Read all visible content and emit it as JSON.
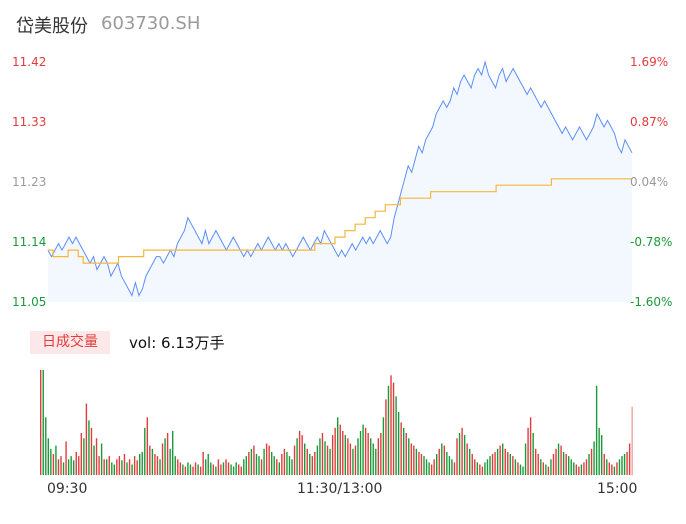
{
  "header": {
    "name": "岱美股份",
    "code": "603730.SH"
  },
  "colors": {
    "up": "#e23b3b",
    "down": "#1a9b3a",
    "flat": "#9a9a9a",
    "price": "#5b8ff9",
    "avg": "#f6b73c",
    "fill": "#f3f7fe"
  },
  "volume": {
    "tag": "日成交量",
    "text": "vol: 6.13万手"
  },
  "time_labels": [
    "09:30",
    "11:30/13:00",
    "15:00"
  ],
  "chart_data": [
    {
      "type": "line",
      "name": "intraday-price",
      "x_range": [
        "09:30",
        "15:00"
      ],
      "ylim": [
        11.05,
        11.42
      ],
      "y_ticks": [
        "11.42",
        "11.33",
        "11.23",
        "11.14",
        "11.05"
      ],
      "pct_ticks": [
        "1.69%",
        "0.87%",
        "0.04%",
        "-0.78%",
        "-1.60%"
      ],
      "prev_close": 11.23,
      "series": [
        {
          "values": [
            11.13,
            11.12,
            11.13,
            11.14,
            11.13,
            11.14,
            11.15,
            11.14,
            11.15,
            11.14,
            11.13,
            11.12,
            11.11,
            11.12,
            11.1,
            11.11,
            11.12,
            11.11,
            11.09,
            11.1,
            11.11,
            11.09,
            11.08,
            11.07,
            11.06,
            11.08,
            11.06,
            11.07,
            11.09,
            11.1,
            11.11,
            11.12,
            11.12,
            11.11,
            11.12,
            11.13,
            11.12,
            11.14,
            11.15,
            11.16,
            11.18,
            11.17,
            11.16,
            11.15,
            11.14,
            11.16,
            11.14,
            11.15,
            11.16,
            11.15,
            11.14,
            11.13,
            11.14,
            11.15,
            11.14,
            11.13,
            11.12,
            11.13,
            11.12,
            11.13,
            11.14,
            11.13,
            11.14,
            11.15,
            11.14,
            11.13,
            11.14,
            11.13,
            11.14,
            11.13,
            11.12,
            11.13,
            11.14,
            11.15,
            11.14,
            11.13,
            11.14,
            11.15,
            11.14,
            11.16,
            11.15,
            11.14,
            11.13,
            11.12,
            11.13,
            11.12,
            11.13,
            11.14,
            11.13,
            11.14,
            11.15,
            11.14,
            11.15,
            11.14,
            11.15,
            11.16,
            11.15,
            11.14,
            11.15,
            11.18,
            11.2,
            11.22,
            11.24,
            11.26,
            11.25,
            11.27,
            11.29,
            11.28,
            11.3,
            11.31,
            11.32,
            11.34,
            11.35,
            11.36,
            11.35,
            11.36,
            11.38,
            11.37,
            11.39,
            11.4,
            11.39,
            11.38,
            11.4,
            11.41,
            11.4,
            11.42,
            11.4,
            11.39,
            11.38,
            11.4,
            11.41,
            11.39,
            11.4,
            11.41,
            11.4,
            11.39,
            11.38,
            11.37,
            11.38,
            11.37,
            11.36,
            11.35,
            11.36,
            11.35,
            11.34,
            11.33,
            11.32,
            11.31,
            11.32,
            11.31,
            11.3,
            11.31,
            11.32,
            11.31,
            11.3,
            11.31,
            11.32,
            11.34,
            11.33,
            11.32,
            11.33,
            11.32,
            11.31,
            11.29,
            11.28,
            11.3,
            11.29,
            11.28
          ],
          "color_key": "price"
        },
        {
          "values": [
            11.13,
            11.12,
            11.12,
            11.12,
            11.13,
            11.13,
            11.12,
            11.11,
            11.11,
            11.11,
            11.11,
            11.11,
            11.11,
            11.11,
            11.12,
            11.12,
            11.12,
            11.12,
            11.12,
            11.13,
            11.13,
            11.13,
            11.13,
            11.13,
            11.13,
            11.13,
            11.13,
            11.13,
            11.13,
            11.13,
            11.13,
            11.13,
            11.13,
            11.13,
            11.13,
            11.13,
            11.13,
            11.13,
            11.13,
            11.13,
            11.13,
            11.13,
            11.13,
            11.13,
            11.13,
            11.13,
            11.13,
            11.13,
            11.13,
            11.13,
            11.13,
            11.13,
            11.13,
            11.14,
            11.14,
            11.14,
            11.14,
            11.15,
            11.15,
            11.16,
            11.16,
            11.17,
            11.17,
            11.18,
            11.18,
            11.19,
            11.19,
            11.2,
            11.2,
            11.2,
            11.21,
            11.21,
            11.21,
            11.21,
            11.21,
            11.21,
            11.22,
            11.22,
            11.22,
            11.22,
            11.22,
            11.22,
            11.22,
            11.22,
            11.22,
            11.22,
            11.22,
            11.22,
            11.22,
            11.23,
            11.23,
            11.23,
            11.23,
            11.23,
            11.23,
            11.23,
            11.23,
            11.23,
            11.23,
            11.23,
            11.24,
            11.24,
            11.24,
            11.24,
            11.24,
            11.24,
            11.24,
            11.24,
            11.24,
            11.24,
            11.24,
            11.24,
            11.24,
            11.24,
            11.24,
            11.24
          ],
          "color_key": "avg",
          "x_offset": 60
        }
      ]
    },
    {
      "type": "bar",
      "name": "volume",
      "ylim": [
        0,
        100
      ],
      "values": [
        100,
        100,
        55,
        35,
        25,
        20,
        28,
        15,
        18,
        12,
        32,
        15,
        18,
        14,
        22,
        18,
        40,
        35,
        68,
        52,
        45,
        28,
        35,
        18,
        30,
        15,
        15,
        18,
        12,
        10,
        15,
        18,
        14,
        20,
        12,
        15,
        10,
        18,
        14,
        20,
        22,
        45,
        55,
        28,
        25,
        20,
        18,
        15,
        30,
        35,
        40,
        25,
        42,
        18,
        15,
        12,
        10,
        8,
        12,
        10,
        8,
        12,
        10,
        8,
        22,
        15,
        20,
        12,
        10,
        8,
        15,
        10,
        12,
        15,
        12,
        10,
        8,
        12,
        10,
        8,
        15,
        18,
        22,
        25,
        28,
        20,
        18,
        15,
        25,
        30,
        28,
        22,
        18,
        15,
        12,
        20,
        25,
        22,
        18,
        15,
        28,
        35,
        42,
        38,
        30,
        25,
        20,
        18,
        22,
        28,
        35,
        40,
        32,
        28,
        25,
        38,
        45,
        55,
        48,
        42,
        38,
        35,
        30,
        25,
        28,
        35,
        42,
        48,
        45,
        40,
        35,
        30,
        25,
        35,
        40,
        55,
        72,
        85,
        95,
        88,
        75,
        60,
        50,
        45,
        40,
        35,
        30,
        28,
        25,
        22,
        20,
        18,
        15,
        12,
        10,
        15,
        20,
        25,
        30,
        28,
        22,
        18,
        15,
        12,
        35,
        40,
        45,
        38,
        30,
        25,
        20,
        15,
        12,
        10,
        8,
        12,
        15,
        18,
        20,
        22,
        25,
        28,
        30,
        25,
        22,
        20,
        18,
        15,
        12,
        10,
        8,
        30,
        45,
        55,
        40,
        25,
        20,
        15,
        12,
        10,
        8,
        15,
        20,
        25,
        30,
        28,
        22,
        20,
        18,
        15,
        12,
        10,
        8,
        10,
        12,
        15,
        20,
        25,
        32,
        85,
        45,
        38,
        20,
        15,
        12,
        10,
        8,
        12,
        15,
        18,
        20,
        22,
        30,
        65
      ],
      "up_down": "ruddgrgrrgrgggrrrgrgrgrrgrgrggrrgrgrgrrgggrrgrrgrgrgggrrgrggrrgrrgggrgrrgrrgggrrggrgrggrgrrggrgrrgggrgrrgrgrrggrgrgrrgrrgrrgrgggrrgggrrgrgrrggrgrgrrgrrgggrrgrgrgggrrgrgrgrrgrrgggrrgrgrrgrgrgggrrgrrgrgrgrrgrgrgggrrgrrg"
    }
  ]
}
